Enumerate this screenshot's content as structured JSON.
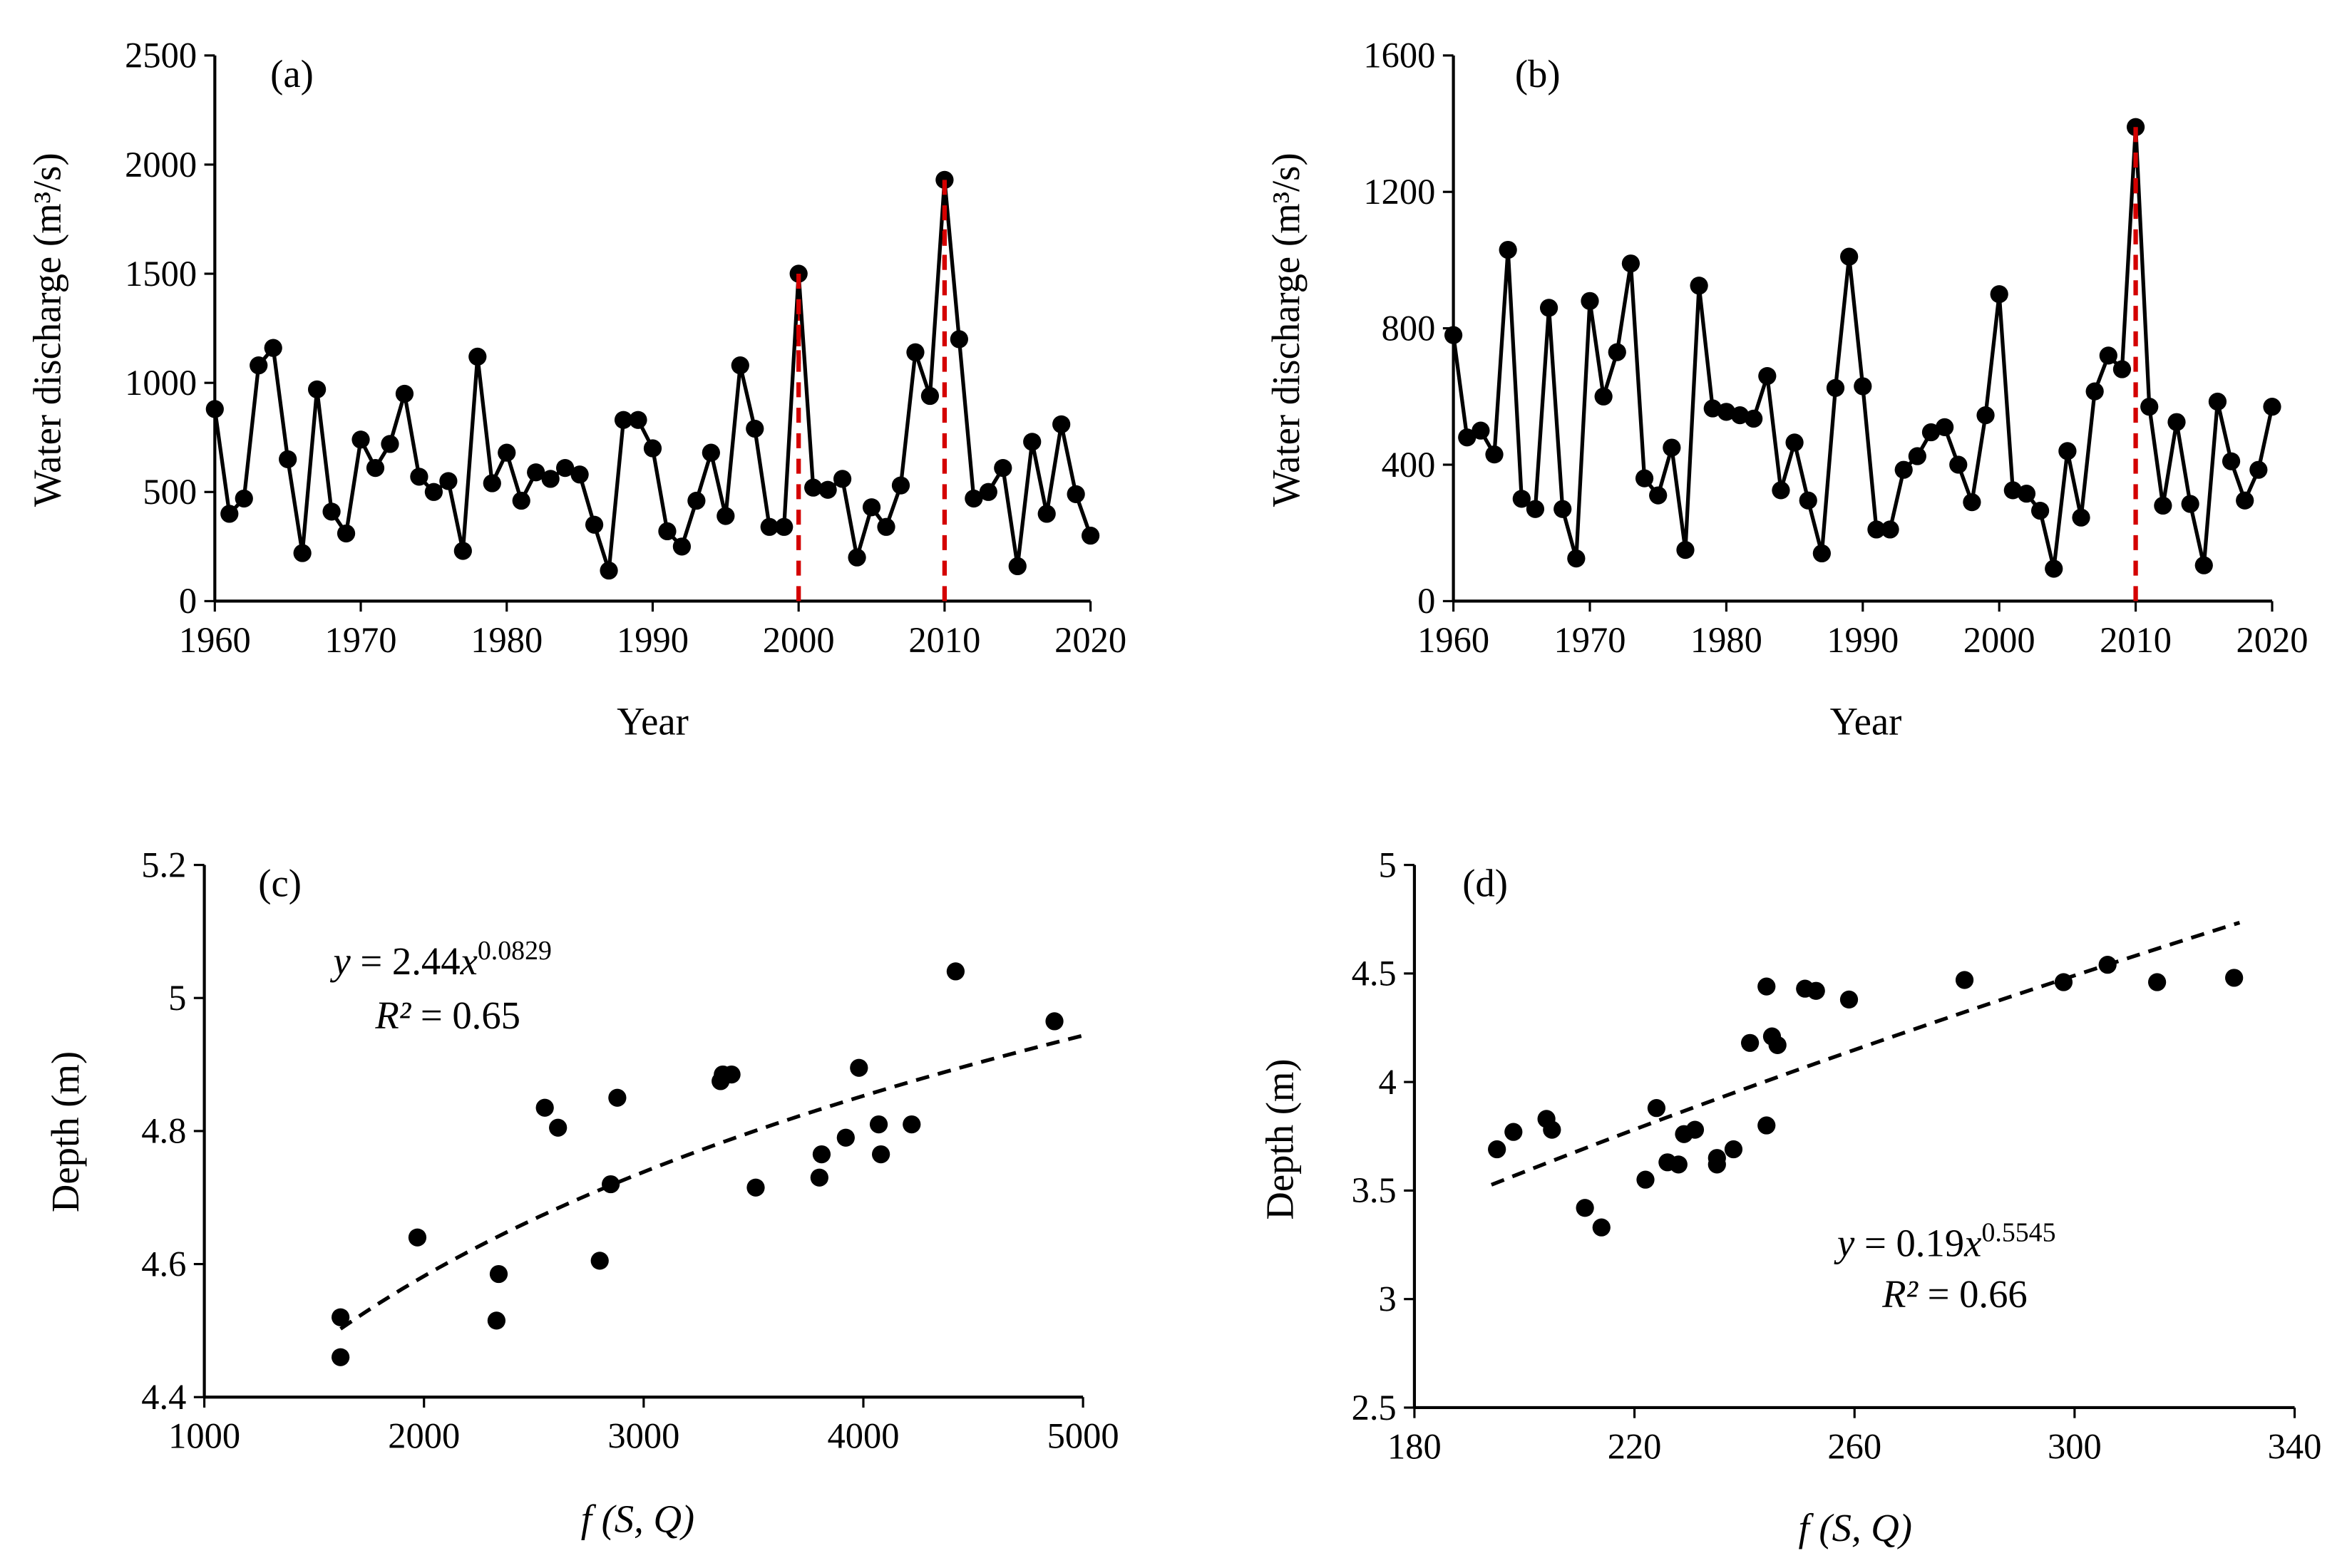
{
  "chart_data": [
    {
      "id": "a",
      "type": "line",
      "panel_label": "(a)",
      "xlabel": "Year",
      "ylabel": "Water discharge (m³/s)",
      "xlim": [
        1960,
        2020
      ],
      "ylim": [
        0,
        2500
      ],
      "xticks": [
        1960,
        1970,
        1980,
        1990,
        2000,
        2010,
        2020
      ],
      "yticks": [
        0,
        500,
        1000,
        1500,
        2000,
        2500
      ],
      "x_start": 1960,
      "values": [
        880,
        400,
        470,
        1080,
        1160,
        650,
        220,
        970,
        410,
        310,
        740,
        610,
        720,
        950,
        570,
        500,
        550,
        230,
        1120,
        540,
        680,
        460,
        590,
        560,
        610,
        580,
        350,
        140,
        830,
        830,
        700,
        320,
        250,
        460,
        680,
        390,
        1080,
        790,
        340,
        340,
        1500,
        520,
        510,
        560,
        200,
        430,
        340,
        530,
        1140,
        940,
        1930,
        1200,
        470,
        500,
        610,
        160,
        730,
        400,
        810,
        490,
        300
      ],
      "highlight_years": [
        2000,
        2010
      ],
      "highlight_color": "#d40000"
    },
    {
      "id": "b",
      "type": "line",
      "panel_label": "(b)",
      "xlabel": "Year",
      "ylabel": "Water discharge (m³/s)",
      "xlim": [
        1960,
        2020
      ],
      "ylim": [
        0,
        1600
      ],
      "xticks": [
        1960,
        1970,
        1980,
        1990,
        2000,
        2010,
        2020
      ],
      "yticks": [
        0,
        400,
        800,
        1200,
        1600
      ],
      "x_start": 1960,
      "values": [
        780,
        480,
        500,
        430,
        1030,
        300,
        270,
        860,
        270,
        125,
        880,
        600,
        730,
        990,
        360,
        310,
        450,
        150,
        925,
        565,
        555,
        545,
        535,
        660,
        325,
        465,
        295,
        140,
        625,
        1010,
        630,
        210,
        210,
        385,
        425,
        495,
        510,
        400,
        290,
        545,
        900,
        325,
        315,
        265,
        95,
        440,
        245,
        615,
        720,
        680,
        1390,
        570,
        280,
        525,
        285,
        105,
        585,
        410,
        295,
        385,
        570
      ],
      "highlight_years": [
        2010
      ],
      "highlight_color": "#d40000"
    },
    {
      "id": "c",
      "type": "scatter",
      "panel_label": "(c)",
      "xlabel": "f (S, Q)",
      "ylabel": "Depth (m)",
      "xlim": [
        1000,
        5000
      ],
      "ylim": [
        4.4,
        5.2
      ],
      "xticks": [
        1000,
        2000,
        3000,
        4000,
        5000
      ],
      "yticks": [
        4.4,
        4.6,
        4.8,
        5,
        5.2
      ],
      "points": [
        [
          1620,
          4.46
        ],
        [
          1620,
          4.52
        ],
        [
          1970,
          4.64
        ],
        [
          2330,
          4.515
        ],
        [
          2340,
          4.585
        ],
        [
          2550,
          4.835
        ],
        [
          2610,
          4.805
        ],
        [
          2800,
          4.605
        ],
        [
          2850,
          4.72
        ],
        [
          2880,
          4.85
        ],
        [
          3350,
          4.875
        ],
        [
          3360,
          4.885
        ],
        [
          3400,
          4.885
        ],
        [
          3510,
          4.715
        ],
        [
          3800,
          4.73
        ],
        [
          3810,
          4.765
        ],
        [
          3920,
          4.79
        ],
        [
          3980,
          4.895
        ],
        [
          4070,
          4.81
        ],
        [
          4080,
          4.765
        ],
        [
          4220,
          4.81
        ],
        [
          4420,
          5.04
        ],
        [
          4870,
          4.965
        ]
      ],
      "trend": {
        "a": 2.44,
        "b": 0.0829,
        "x_range": [
          1620,
          5000
        ]
      },
      "equation": {
        "y": "y",
        "eq": " = 2.44",
        "x": "x",
        "exp": "0.0829",
        "r2_label": "R²",
        "r2": " = 0.65"
      }
    },
    {
      "id": "d",
      "type": "scatter",
      "panel_label": "(d)",
      "xlabel": "f (S, Q)",
      "ylabel": "Depth (m)",
      "xlim": [
        180,
        340
      ],
      "ylim": [
        2.5,
        5
      ],
      "xticks": [
        180,
        220,
        260,
        300,
        340
      ],
      "yticks": [
        2.5,
        3,
        3.5,
        4,
        4.5,
        5
      ],
      "points": [
        [
          195,
          3.69
        ],
        [
          198,
          3.77
        ],
        [
          204,
          3.83
        ],
        [
          205,
          3.78
        ],
        [
          211,
          3.42
        ],
        [
          214,
          3.33
        ],
        [
          222,
          3.55
        ],
        [
          224,
          3.88
        ],
        [
          226,
          3.63
        ],
        [
          228,
          3.62
        ],
        [
          229,
          3.76
        ],
        [
          231,
          3.78
        ],
        [
          235,
          3.65
        ],
        [
          235,
          3.62
        ],
        [
          238,
          3.69
        ],
        [
          241,
          4.18
        ],
        [
          244,
          4.44
        ],
        [
          244,
          3.8
        ],
        [
          245,
          4.21
        ],
        [
          246,
          4.17
        ],
        [
          251,
          4.43
        ],
        [
          253,
          4.42
        ],
        [
          259,
          4.38
        ],
        [
          280,
          4.47
        ],
        [
          298,
          4.46
        ],
        [
          306,
          4.54
        ],
        [
          315,
          4.46
        ],
        [
          329,
          4.48
        ]
      ],
      "trend": {
        "a": 0.19,
        "b": 0.5545,
        "x_range": [
          194,
          330
        ]
      },
      "equation": {
        "y": "y",
        "eq": " = 0.19",
        "x": "x",
        "exp": "0.5545",
        "r2_label": "R²",
        "r2": " = 0.66"
      }
    }
  ]
}
